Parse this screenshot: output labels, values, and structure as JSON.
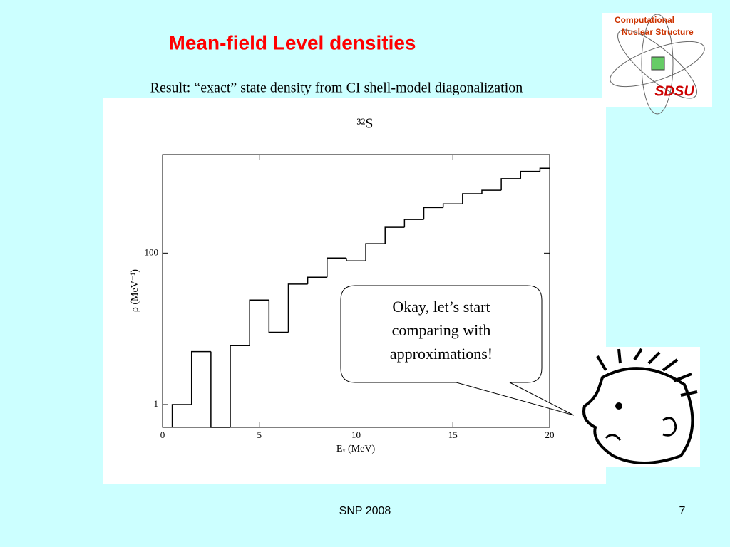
{
  "slide": {
    "title": "Mean-field Level densities",
    "subtitle": "Result: “exact” state density from CI shell-model diagonalization",
    "callout": [
      "Okay, let’s start",
      "comparing with",
      "approximations!"
    ],
    "logo": [
      "Computational",
      "Nuclear Structure",
      "SDSU"
    ],
    "footer": "SNP 2008",
    "page": "7"
  },
  "chart_data": {
    "type": "histogram",
    "title": "³²S",
    "x_label": "Eₓ (MeV)",
    "y_label": "ρ (MeV⁻¹)",
    "bins": [
      0.5,
      1.5,
      2.5,
      3.5,
      4.5,
      5.5,
      6.5,
      7.5,
      8.5,
      9.5,
      10.5,
      11.5,
      12.5,
      13.5,
      14.5,
      15.5,
      16.5,
      17.5,
      18.5,
      19.5,
      20
    ],
    "values": [
      1,
      5,
      0,
      6,
      24,
      9,
      39,
      48,
      86,
      79,
      133,
      219,
      278,
      400,
      447,
      608,
      676,
      960,
      1200,
      1320
    ],
    "color": "#000000",
    "xlim": [
      0,
      20
    ],
    "xticks": [
      0,
      5,
      10,
      15,
      20
    ],
    "ylim": [
      0.5,
      2000
    ],
    "yticks": [
      1,
      100
    ],
    "log_y": true
  }
}
